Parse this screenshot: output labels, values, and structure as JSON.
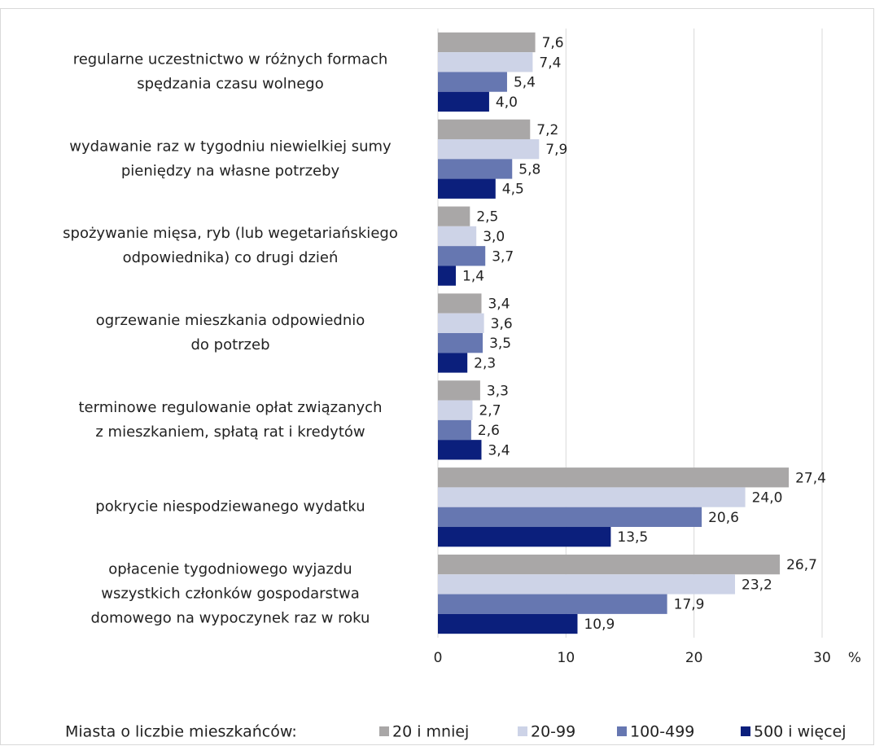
{
  "chart_data": {
    "type": "barh",
    "categories": [
      "regularne uczestnictwo w różnych formach\nspędzania czasu wolnego",
      "wydawanie raz w tygodniu niewielkiej sumy\npieniędzy na własne potrzeby",
      "spożywanie mięsa, ryb (lub wegetariańskiego\nodpowiednika) co drugi dzień",
      "ogrzewanie mieszkania odpowiednio\ndo potrzeb",
      "terminowe regulowanie opłat związanych\nz mieszkaniem, spłatą rat i kredytów",
      "pokrycie niespodziewanego wydatku",
      "opłacenie tygodniowego wyjazdu\nwszystkich członków gospodarstwa\ndomowego na wypoczynek raz w roku"
    ],
    "series": [
      {
        "name": "20 i mniej",
        "color": "#a9a7a7",
        "values": [
          7.6,
          7.2,
          2.5,
          3.4,
          3.3,
          27.4,
          26.7
        ],
        "value_labels": [
          "7,6",
          "7,2",
          "2,5",
          "3,4",
          "3,3",
          "27,4",
          "26,7"
        ]
      },
      {
        "name": "20-99",
        "color": "#cdd3e7",
        "values": [
          7.4,
          7.9,
          3.0,
          3.6,
          2.7,
          24.0,
          23.2
        ],
        "value_labels": [
          "7,4",
          "7,9",
          "3,0",
          "3,6",
          "2,7",
          "24,0",
          "23,2"
        ]
      },
      {
        "name": "100-499",
        "color": "#6677b1",
        "values": [
          5.4,
          5.8,
          3.7,
          3.5,
          2.6,
          20.6,
          17.9
        ],
        "value_labels": [
          "5,4",
          "5,8",
          "3,7",
          "3,5",
          "2,6",
          "20,6",
          "17,9"
        ]
      },
      {
        "name": "500 i więcej",
        "color": "#0b1f7c",
        "values": [
          4.0,
          4.5,
          1.4,
          2.3,
          3.4,
          13.5,
          10.9
        ],
        "value_labels": [
          "4,0",
          "4,5",
          "1,4",
          "2,3",
          "3,4",
          "13,5",
          "10,9"
        ]
      }
    ],
    "xlim": [
      0,
      30
    ],
    "xticks": [
      0,
      10,
      20,
      30
    ],
    "xlabel": "%",
    "grid": true,
    "legend_title": "Miasta o liczbie mieszkańców:",
    "legend": "bottom"
  }
}
